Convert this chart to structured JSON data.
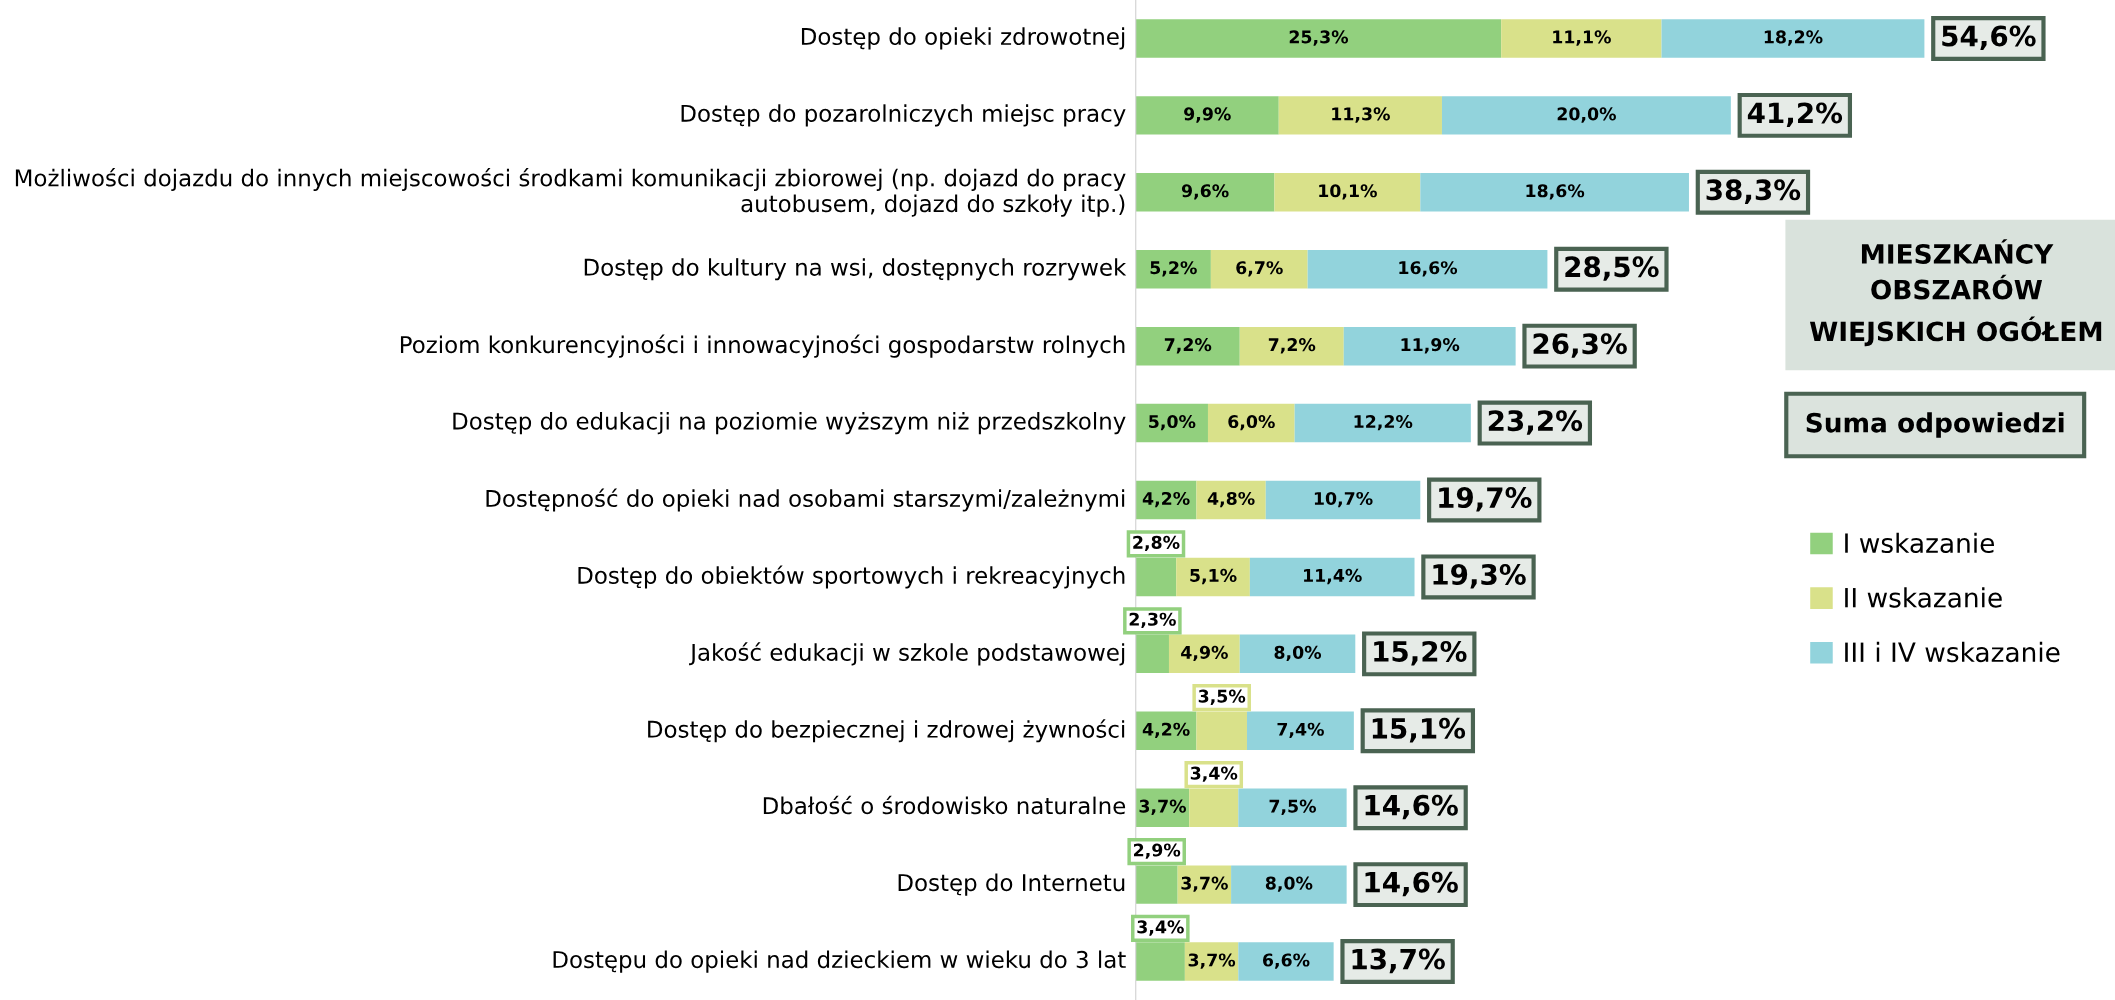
{
  "chart_data": {
    "type": "bar",
    "orientation": "horizontal",
    "stacked": true,
    "title": "MIESZKAŃCY OBSZARÓW WIEJSKICH OGÓŁEM",
    "annotations": [
      "Suma odpowiedzi"
    ],
    "categories": [
      "Dostęp do opieki zdrowotnej",
      "Dostęp do pozarolniczych miejsc pracy",
      "Możliwości dojazdu do innych miejscowości środkami komunikacji zbiorowej (np. dojazd do pracy autobusem, dojazd do szkoły itp.)",
      "Dostęp do kultury na wsi, dostępnych rozrywek",
      "Poziom konkurencyjności i innowacyjności gospodarstw rolnych",
      "Dostęp do edukacji na poziomie wyższym niż przedszkolny",
      "Dostępność do opieki nad osobami starszymi/zależnymi",
      "Dostęp do obiektów sportowych i rekreacyjnych",
      "Jakość edukacji w szkole podstawowej",
      "Dostęp do bezpiecznej i zdrowej żywności",
      "Dbałość o środowisko naturalne",
      "Dostęp do Internetu",
      "Dostępu do opieki nad dzieckiem w wieku do 3 lat"
    ],
    "series": [
      {
        "name": "I wskazanie",
        "color": "#92d07e",
        "values": [
          25.3,
          9.9,
          9.6,
          5.2,
          7.2,
          5.0,
          4.2,
          2.8,
          2.3,
          4.2,
          3.7,
          2.9,
          3.4
        ],
        "value_labels": [
          "25,3%",
          "9,9%",
          "9,6%",
          "5,2%",
          "7,2%",
          "5,0%",
          "4,2%",
          "2,8%",
          "2,3%",
          "4,2%",
          "3,7%",
          "2,9%",
          "3,4%"
        ]
      },
      {
        "name": "II wskazanie",
        "color": "#d9e18a",
        "values": [
          11.1,
          11.3,
          10.1,
          6.7,
          7.2,
          6.0,
          4.8,
          5.1,
          4.9,
          3.5,
          3.4,
          3.7,
          3.7
        ],
        "value_labels": [
          "11,1%",
          "11,3%",
          "10,1%",
          "6,7%",
          "7,2%",
          "6,0%",
          "4,8%",
          "5,1%",
          "4,9%",
          "3,5%",
          "3,4%",
          "3,7%",
          "3,7%"
        ]
      },
      {
        "name": "III i IV wskazanie",
        "color": "#92d3dc",
        "values": [
          18.2,
          20.0,
          18.6,
          16.6,
          11.9,
          12.2,
          10.7,
          11.4,
          8.0,
          7.4,
          7.5,
          8.0,
          6.6
        ],
        "value_labels": [
          "18,2%",
          "20,0%",
          "18,6%",
          "16,6%",
          "11,9%",
          "12,2%",
          "10,7%",
          "11,4%",
          "8,0%",
          "7,4%",
          "7,5%",
          "8,0%",
          "6,6%"
        ]
      }
    ],
    "totals": [
      "54,6%",
      "41,2%",
      "38,3%",
      "28,5%",
      "26,3%",
      "23,2%",
      "19,7%",
      "19,3%",
      "15,2%",
      "15,1%",
      "14,6%",
      "14,6%",
      "13,7%"
    ],
    "legend": "right",
    "grid": false
  }
}
